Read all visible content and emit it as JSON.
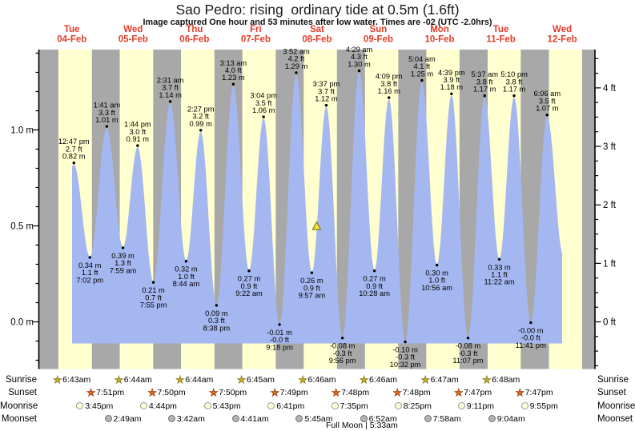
{
  "header": {
    "title": "Sao Pedro: rising  ordinary tide at 0.5m (1.6ft)",
    "subtitle": "Image captured One hour and 53 minutes after low water. Times are -02 (UTC -2.0hrs)"
  },
  "colors": {
    "night": "#a8a8a8",
    "day": "#ffffcf",
    "water": "#a4b7f0",
    "date_label": "#e23b28",
    "sunrise_star": "#c9b52e",
    "sunrise_star_edge": "#8a7d1c",
    "sunset_star": "#e0741f",
    "sunset_star_edge": "#a33c0e",
    "moonrise_fill": "#ffffd9",
    "moonrise_edge": "#999999",
    "moonset_fill": "#b4b4b4",
    "moonset_edge": "#6f6f6f",
    "marker_fill": "#f0e644",
    "marker_edge": "#8a7d1c"
  },
  "chart_data": {
    "type": "area",
    "title": "Sao Pedro: rising  ordinary tide at 0.5m (1.6ft)",
    "days": [
      {
        "dow": "Tue",
        "date": "04-Feb"
      },
      {
        "dow": "Wed",
        "date": "05-Feb"
      },
      {
        "dow": "Thu",
        "date": "06-Feb"
      },
      {
        "dow": "Fri",
        "date": "07-Feb"
      },
      {
        "dow": "Sat",
        "date": "08-Feb"
      },
      {
        "dow": "Sun",
        "date": "09-Feb"
      },
      {
        "dow": "Mon",
        "date": "10-Feb"
      },
      {
        "dow": "Tue",
        "date": "11-Feb"
      },
      {
        "dow": "Wed",
        "date": "12-Feb"
      }
    ],
    "y_left": {
      "unit": "m",
      "major_ticks": [
        0.0,
        0.5,
        1.0
      ],
      "labels": [
        "0.0 m",
        "0.5 m",
        "1.0 m"
      ],
      "minor_step": 0.1,
      "range": [
        -0.25,
        1.42
      ]
    },
    "y_right": {
      "unit": "ft",
      "major_ticks": [
        0,
        1,
        2,
        3,
        4
      ],
      "labels": [
        "0 ft",
        "1 ft",
        "2 ft",
        "3 ft",
        "4 ft"
      ],
      "minor_step": 0.25
    },
    "extremes": [
      {
        "kind": "high",
        "day": 0,
        "time": "12:47 pm",
        "ft": "2.7",
        "m": "0.82"
      },
      {
        "kind": "low",
        "day": 0,
        "time": "7:02 pm",
        "ft": "1.1",
        "m": "0.34"
      },
      {
        "kind": "high",
        "day": 1,
        "time": "1:41 am",
        "ft": "3.3",
        "m": "1.01"
      },
      {
        "kind": "low",
        "day": 1,
        "time": "7:59 am",
        "ft": "1.3",
        "m": "0.39"
      },
      {
        "kind": "high",
        "day": 1,
        "time": "1:44 pm",
        "ft": "3.0",
        "m": "0.91"
      },
      {
        "kind": "low",
        "day": 1,
        "time": "7:55 pm",
        "ft": "0.7",
        "m": "0.21"
      },
      {
        "kind": "high",
        "day": 2,
        "time": "2:31 am",
        "ft": "3.7",
        "m": "1.14"
      },
      {
        "kind": "low",
        "day": 2,
        "time": "8:44 am",
        "ft": "1.0",
        "m": "0.32"
      },
      {
        "kind": "high",
        "day": 2,
        "time": "2:27 pm",
        "ft": "3.2",
        "m": "0.99"
      },
      {
        "kind": "low",
        "day": 2,
        "time": "8:38 pm",
        "ft": "0.3",
        "m": "0.09"
      },
      {
        "kind": "high",
        "day": 3,
        "time": "3:13 am",
        "ft": "4.0",
        "m": "1.23"
      },
      {
        "kind": "low",
        "day": 3,
        "time": "9:22 am",
        "ft": "0.9",
        "m": "0.27"
      },
      {
        "kind": "high",
        "day": 3,
        "time": "3:04 pm",
        "ft": "3.5",
        "m": "1.06"
      },
      {
        "kind": "low",
        "day": 3,
        "time": "9:18 pm",
        "ft": "-0.0",
        "m": "-0.01"
      },
      {
        "kind": "high",
        "day": 4,
        "time": "3:52 am",
        "ft": "4.2",
        "m": "1.29"
      },
      {
        "kind": "low",
        "day": 4,
        "time": "9:57 am",
        "ft": "0.9",
        "m": "0.26"
      },
      {
        "kind": "high",
        "day": 4,
        "time": "3:37 pm",
        "ft": "3.7",
        "m": "1.12"
      },
      {
        "kind": "low",
        "day": 4,
        "time": "9:56 pm",
        "ft": "-0.3",
        "m": "-0.08"
      },
      {
        "kind": "high",
        "day": 5,
        "time": "4:29 am",
        "ft": "4.3",
        "m": "1.30"
      },
      {
        "kind": "low",
        "day": 5,
        "time": "10:28 am",
        "ft": "0.9",
        "m": "0.27"
      },
      {
        "kind": "high",
        "day": 5,
        "time": "4:09 pm",
        "ft": "3.8",
        "m": "1.16"
      },
      {
        "kind": "low",
        "day": 5,
        "time": "10:32 pm",
        "ft": "-0.3",
        "m": "-0.10"
      },
      {
        "kind": "high",
        "day": 6,
        "time": "5:04 am",
        "ft": "4.1",
        "m": "1.25"
      },
      {
        "kind": "low",
        "day": 6,
        "time": "10:56 am",
        "ft": "1.0",
        "m": "0.30"
      },
      {
        "kind": "high",
        "day": 6,
        "time": "4:39 pm",
        "ft": "3.9",
        "m": "1.18"
      },
      {
        "kind": "low",
        "day": 6,
        "time": "11:07 pm",
        "ft": "-0.3",
        "m": "-0.08"
      },
      {
        "kind": "high",
        "day": 7,
        "time": "5:37 am",
        "ft": "3.8",
        "m": "1.17"
      },
      {
        "kind": "low",
        "day": 7,
        "time": "11:22 am",
        "ft": "1.1",
        "m": "0.33"
      },
      {
        "kind": "high",
        "day": 7,
        "time": "5:10 pm",
        "ft": "3.8",
        "m": "1.17"
      },
      {
        "kind": "low",
        "day": 7,
        "time": "11:41 pm",
        "ft": "-0.0",
        "m": "-0.00"
      },
      {
        "kind": "high",
        "day": 8,
        "time": "6:06 am",
        "ft": "3.5",
        "m": "1.07"
      }
    ],
    "capture_marker": {
      "day": 4,
      "time": "11:50am",
      "height_m": 0.5
    }
  },
  "astro": {
    "row_labels": [
      "Sunrise",
      "Sunset",
      "Moonrise",
      "Moonset"
    ],
    "sunrise": [
      {
        "day": 0,
        "time": "6:43am"
      },
      {
        "day": 1,
        "time": "6:44am"
      },
      {
        "day": 2,
        "time": "6:44am"
      },
      {
        "day": 3,
        "time": "6:45am"
      },
      {
        "day": 4,
        "time": "6:46am"
      },
      {
        "day": 5,
        "time": "6:46am"
      },
      {
        "day": 6,
        "time": "6:47am"
      },
      {
        "day": 7,
        "time": "6:48am"
      }
    ],
    "sunset": [
      {
        "day": 0,
        "time": "7:51pm"
      },
      {
        "day": 1,
        "time": "7:50pm"
      },
      {
        "day": 2,
        "time": "7:50pm"
      },
      {
        "day": 3,
        "time": "7:49pm"
      },
      {
        "day": 4,
        "time": "7:48pm"
      },
      {
        "day": 5,
        "time": "7:48pm"
      },
      {
        "day": 6,
        "time": "7:47pm"
      },
      {
        "day": 7,
        "time": "7:47pm"
      }
    ],
    "moonrise": [
      {
        "day": 0,
        "time": "3:45pm"
      },
      {
        "day": 1,
        "time": "4:44pm"
      },
      {
        "day": 2,
        "time": "5:43pm"
      },
      {
        "day": 3,
        "time": "6:41pm"
      },
      {
        "day": 4,
        "time": "7:35pm"
      },
      {
        "day": 5,
        "time": "8:25pm"
      },
      {
        "day": 6,
        "time": "9:11pm"
      },
      {
        "day": 7,
        "time": "9:55pm"
      }
    ],
    "moonset": [
      {
        "day": 1,
        "time": "2:49am"
      },
      {
        "day": 2,
        "time": "3:42am"
      },
      {
        "day": 3,
        "time": "4:41am"
      },
      {
        "day": 4,
        "time": "5:45am"
      },
      {
        "day": 5,
        "time": "6:52am"
      },
      {
        "day": 6,
        "time": "7:58am"
      },
      {
        "day": 7,
        "time": "9:04am"
      }
    ],
    "full_moon": {
      "text": "Full Moon | 5:33am",
      "day": 5,
      "time": "5:33am"
    }
  }
}
